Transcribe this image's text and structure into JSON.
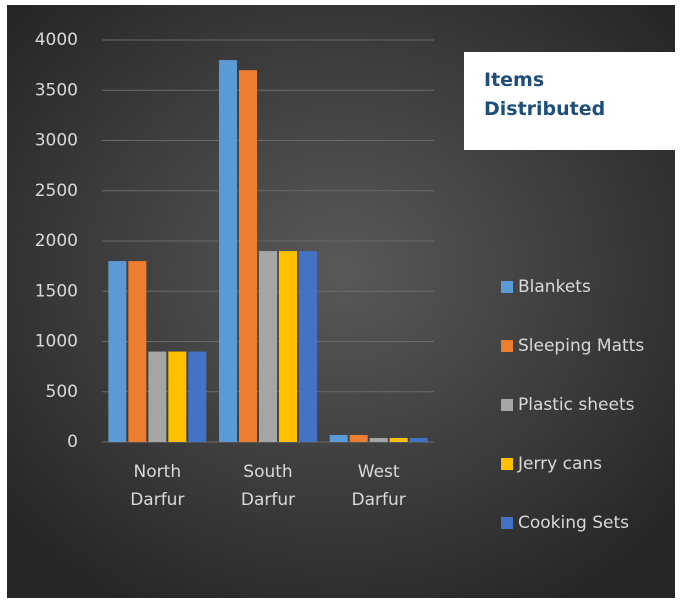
{
  "chart_data": {
    "type": "bar",
    "title": "Items Distributed",
    "categories": [
      "North Darfur",
      "South Darfur",
      "West Darfur"
    ],
    "series": [
      {
        "name": "Blankets",
        "color": "#5b9bd5",
        "values": [
          1800,
          3800,
          70
        ]
      },
      {
        "name": "Sleeping Matts",
        "color": "#ed7d31",
        "values": [
          1800,
          3700,
          70
        ]
      },
      {
        "name": "Plastic sheets",
        "color": "#a5a5a5",
        "values": [
          900,
          1900,
          40
        ]
      },
      {
        "name": "Jerry cans",
        "color": "#ffc000",
        "values": [
          900,
          1900,
          40
        ]
      },
      {
        "name": "Cooking Sets",
        "color": "#4472c4",
        "values": [
          900,
          1900,
          40
        ]
      }
    ],
    "ylim": [
      0,
      4000
    ],
    "yticks": [
      0,
      500,
      1000,
      1500,
      2000,
      2500,
      3000,
      3500,
      4000
    ],
    "grid": true,
    "legend": "right"
  }
}
